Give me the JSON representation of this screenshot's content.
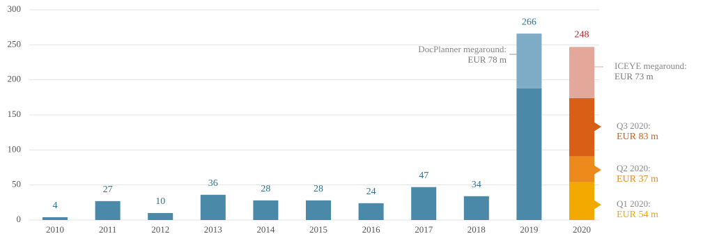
{
  "chart_data": {
    "type": "bar",
    "categories": [
      "2010",
      "2011",
      "2012",
      "2013",
      "2014",
      "2015",
      "2016",
      "2017",
      "2018",
      "2019",
      "2020"
    ],
    "ylim": [
      0,
      300
    ],
    "yticks": [
      0,
      50,
      100,
      150,
      200,
      250,
      300
    ],
    "grid": true,
    "series": [
      {
        "color": "#4a89a8",
        "values": [
          4,
          27,
          10,
          36,
          28,
          28,
          24,
          47,
          34,
          188,
          null
        ]
      },
      {
        "color": "#7eabc5",
        "values": [
          null,
          null,
          null,
          null,
          null,
          null,
          null,
          null,
          null,
          78,
          null
        ]
      },
      {
        "color": "#f2a900",
        "values": [
          null,
          null,
          null,
          null,
          null,
          null,
          null,
          null,
          null,
          null,
          54
        ]
      },
      {
        "color": "#ec8a1c",
        "values": [
          null,
          null,
          null,
          null,
          null,
          null,
          null,
          null,
          null,
          null,
          37
        ]
      },
      {
        "color": "#d95f17",
        "values": [
          null,
          null,
          null,
          null,
          null,
          null,
          null,
          null,
          null,
          null,
          83
        ]
      },
      {
        "color": "#e3a89a",
        "values": [
          null,
          null,
          null,
          null,
          null,
          null,
          null,
          null,
          null,
          null,
          73
        ]
      }
    ],
    "totals": [
      4,
      27,
      10,
      36,
      28,
      28,
      24,
      47,
      34,
      266,
      248
    ],
    "total_colors": [
      "#2f7391",
      "#2f7391",
      "#2f7391",
      "#2f7391",
      "#2f7391",
      "#2f7391",
      "#2f7391",
      "#2f7391",
      "#2f7391",
      "#2f7391",
      "#b3262e"
    ],
    "annotations": [
      {
        "lines": [
          "DocPlanner megaround:",
          "EUR 78 m"
        ]
      },
      {
        "lines": [
          "ICEYE megaround:",
          "EUR 73 m"
        ]
      },
      {
        "lines": [
          "Q3 2020:",
          "EUR 83 m"
        ]
      },
      {
        "lines": [
          "Q2 2020:",
          "EUR 37 m"
        ]
      },
      {
        "lines": [
          "Q1 2020:",
          "EUR 54 m"
        ]
      }
    ]
  }
}
